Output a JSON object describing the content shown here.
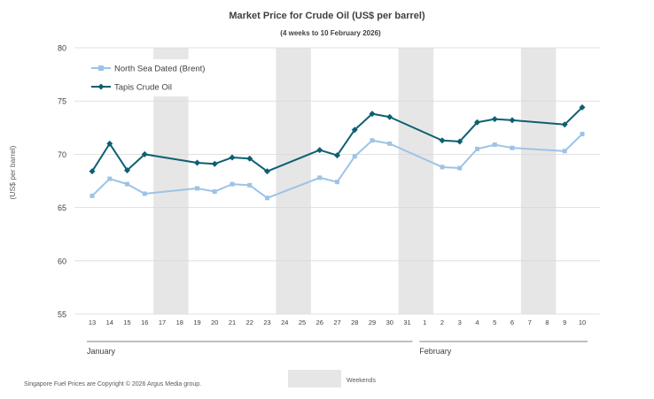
{
  "chart_data": {
    "type": "line",
    "title": "Market Price for Crude Oil (US$ per barrel)",
    "subtitle": "(4 weeks to 10 February 2026)",
    "ylabel": "(US$ per barrel)",
    "xlabel": "",
    "ylim": [
      55,
      80
    ],
    "yticks": [
      55,
      60,
      65,
      70,
      75,
      80
    ],
    "grid": true,
    "legend_position": "top-left",
    "categories": [
      "13",
      "14",
      "15",
      "16",
      "17",
      "18",
      "19",
      "20",
      "21",
      "22",
      "23",
      "24",
      "25",
      "26",
      "27",
      "28",
      "29",
      "30",
      "31",
      "1",
      "2",
      "3",
      "4",
      "5",
      "6",
      "7",
      "8",
      "9",
      "10"
    ],
    "months": [
      {
        "label": "January",
        "from": "13",
        "to": "31"
      },
      {
        "label": "February",
        "from": "1",
        "to": "10"
      }
    ],
    "weekends": [
      [
        "17",
        "18"
      ],
      [
        "24",
        "25"
      ],
      [
        "31",
        "1"
      ],
      [
        "7",
        "8"
      ]
    ],
    "series": [
      {
        "name": "North Sea Dated (Brent)",
        "color": "#9dc3e6",
        "marker": "square",
        "values": [
          66.1,
          67.7,
          67.2,
          66.3,
          null,
          null,
          66.8,
          66.5,
          67.2,
          67.1,
          65.9,
          null,
          null,
          67.8,
          67.4,
          69.8,
          71.3,
          71.0,
          null,
          null,
          68.8,
          68.7,
          70.5,
          70.9,
          70.6,
          null,
          null,
          70.3,
          71.9
        ]
      },
      {
        "name": "Tapis Crude Oil",
        "color": "#0e5f73",
        "marker": "diamond",
        "values": [
          68.4,
          71.0,
          68.5,
          70.0,
          null,
          null,
          69.2,
          69.1,
          69.7,
          69.6,
          68.4,
          null,
          null,
          70.4,
          69.9,
          72.3,
          73.8,
          73.5,
          null,
          null,
          71.3,
          71.2,
          73.0,
          73.3,
          73.2,
          null,
          null,
          72.8,
          74.4
        ]
      }
    ]
  },
  "legend_weekends_label": "Weekends",
  "copyright": "Singapore  Fuel  Prices  are Copyright  ©  2026  Argus  Media group."
}
